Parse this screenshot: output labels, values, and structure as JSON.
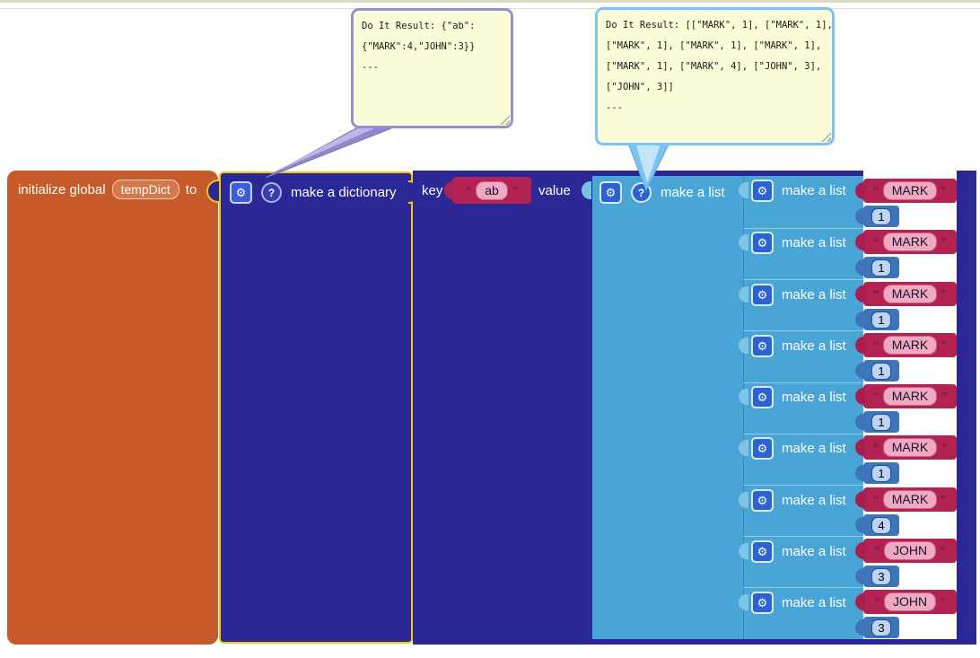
{
  "comments": [
    {
      "name": "dictionary-do-it-result",
      "lines": [
        "Do It Result: {\"ab\":",
        "{\"MARK\":4,\"JOHN\":3}}",
        "---"
      ]
    },
    {
      "name": "list-do-it-result",
      "lines": [
        "Do It Result: [[\"MARK\", 1], [\"MARK\", 1],",
        "[\"MARK\", 1], [\"MARK\", 1], [\"MARK\", 1],",
        "[\"MARK\", 1], [\"MARK\", 4], [\"JOHN\", 3],",
        "[\"JOHN\", 3]]",
        "---"
      ]
    }
  ],
  "blocks": {
    "init_global": {
      "prefix": "initialize global",
      "variable": "tempDict",
      "suffix": "to"
    },
    "make_dictionary": {
      "label": "make a dictionary",
      "mutator_icon": "gear-icon",
      "help_icon": "question-icon"
    },
    "pair": {
      "key_label": "key",
      "key_text": "ab",
      "value_label": "value"
    },
    "outer_list": {
      "label": "make a list"
    },
    "inner_list_label": "make a list",
    "quote_open": "“",
    "quote_close": "”",
    "inner_rows": [
      {
        "text": "MARK",
        "number": "1"
      },
      {
        "text": "MARK",
        "number": "1"
      },
      {
        "text": "MARK",
        "number": "1"
      },
      {
        "text": "MARK",
        "number": "1"
      },
      {
        "text": "MARK",
        "number": "1"
      },
      {
        "text": "MARK",
        "number": "1"
      },
      {
        "text": "MARK",
        "number": "4"
      },
      {
        "text": "JOHN",
        "number": "3"
      },
      {
        "text": "JOHN",
        "number": "3"
      }
    ]
  },
  "colors": {
    "variable_block": "#c75a2b",
    "dictionary_block": "#2b2795",
    "selection_outline": "#f5c40f",
    "list_block": "#49a5d6",
    "text_block": "#b22253",
    "number_block": "#3e74ba",
    "comment_fill": "#fdfcd8",
    "comment_border_dictionary": "#998fd0",
    "comment_border_list": "#7ec2f0"
  },
  "icons": {
    "gear": "⚙",
    "question": "?"
  }
}
